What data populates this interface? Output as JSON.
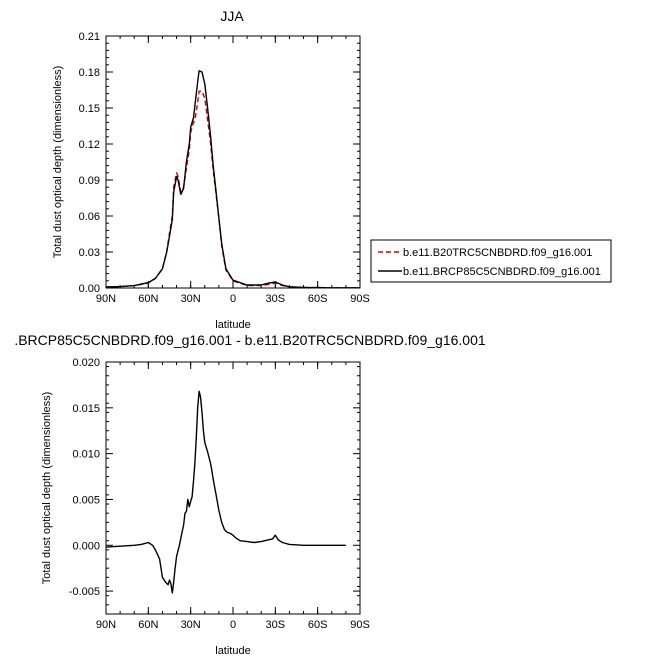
{
  "chart_data": [
    {
      "type": "line",
      "title": "JJA",
      "xlabel": "latitude",
      "ylabel": "Total dust optical depth (dimensionless)",
      "xlim": [
        90,
        -90
      ],
      "ylim": [
        0,
        0.21
      ],
      "xticks": [
        90,
        60,
        30,
        0,
        -30,
        -60,
        -90
      ],
      "xtick_labels": [
        "90N",
        "60N",
        "30N",
        "0",
        "30S",
        "60S",
        "90S"
      ],
      "yticks": [
        0,
        0.03,
        0.06,
        0.09,
        0.12,
        0.15,
        0.18,
        0.21
      ],
      "ytick_labels": [
        "0.00",
        "0.03",
        "0.06",
        "0.09",
        "0.12",
        "0.15",
        "0.18",
        "0.21"
      ],
      "legend_position": "right",
      "series": [
        {
          "name": "b.e11.B20TRC5CNBDRD.f09_g16.001",
          "color": "#cc0000",
          "dash": "dashed",
          "x": [
            90,
            80,
            70,
            60,
            55,
            50,
            47,
            45,
            43,
            42,
            40,
            39,
            37,
            35,
            33,
            31,
            30,
            28,
            27,
            25,
            24,
            22,
            20,
            18,
            16,
            14,
            12,
            10,
            8,
            5,
            0,
            -10,
            -20,
            -25,
            -30,
            -35,
            -40,
            -50,
            -60,
            -70,
            -80,
            -90
          ],
          "values": [
            0.0008,
            0.0012,
            0.002,
            0.004,
            0.008,
            0.016,
            0.03,
            0.046,
            0.06,
            0.084,
            0.096,
            0.093,
            0.08,
            0.084,
            0.1,
            0.115,
            0.13,
            0.138,
            0.14,
            0.155,
            0.164,
            0.164,
            0.158,
            0.14,
            0.122,
            0.098,
            0.078,
            0.058,
            0.035,
            0.015,
            0.006,
            0.002,
            0.002,
            0.003,
            0.004,
            0.002,
            0.001,
            0.0005,
            0.0003,
            0.0002,
            0.0002,
            0.0002
          ]
        },
        {
          "name": "b.e11.BRCP85C5CNBDRD.f09_g16.001",
          "color": "#000000",
          "dash": "solid",
          "x": [
            90,
            80,
            70,
            60,
            55,
            50,
            47,
            45,
            43,
            42,
            40,
            39,
            37,
            35,
            33,
            31,
            30,
            28,
            27,
            25,
            24,
            22,
            20,
            18,
            16,
            14,
            12,
            10,
            8,
            5,
            0,
            -10,
            -20,
            -25,
            -30,
            -35,
            -40,
            -50,
            -60,
            -70,
            -80,
            -90
          ],
          "values": [
            0.0008,
            0.0012,
            0.002,
            0.0045,
            0.008,
            0.016,
            0.03,
            0.043,
            0.057,
            0.08,
            0.093,
            0.09,
            0.078,
            0.083,
            0.105,
            0.12,
            0.134,
            0.142,
            0.152,
            0.172,
            0.181,
            0.18,
            0.17,
            0.15,
            0.128,
            0.102,
            0.08,
            0.058,
            0.037,
            0.016,
            0.0065,
            0.0025,
            0.0025,
            0.004,
            0.005,
            0.0025,
            0.001,
            0.0005,
            0.0003,
            0.0002,
            0.0002,
            0.0002
          ]
        }
      ]
    },
    {
      "type": "line",
      "title": ".BRCP85C5CNBDRD.f09_g16.001 - b.e11.B20TRC5CNBDRD.f09_g16.001",
      "xlabel": "latitude",
      "ylabel": "Total dust optical depth (dimensionless)",
      "xlim": [
        90,
        -90
      ],
      "ylim": [
        -0.0075,
        0.02
      ],
      "xticks": [
        90,
        60,
        30,
        0,
        -30,
        -60,
        -90
      ],
      "xtick_labels": [
        "90N",
        "60N",
        "30N",
        "0",
        "30S",
        "60S",
        "90S"
      ],
      "yticks": [
        -0.005,
        0,
        0.005,
        0.01,
        0.015,
        0.02
      ],
      "ytick_labels": [
        "-0.005",
        "0.000",
        "0.005",
        "0.010",
        "0.015",
        "0.020"
      ],
      "series": [
        {
          "color": "#000000",
          "dash": "solid",
          "x": [
            90,
            80,
            70,
            65,
            60,
            57,
            55,
            52,
            50,
            48,
            46,
            45,
            44,
            43,
            42,
            41,
            40,
            38,
            36,
            35,
            34,
            33,
            32,
            31,
            30,
            29,
            28,
            27,
            26,
            25,
            24,
            23,
            22,
            21,
            20,
            19,
            18,
            17,
            16,
            15,
            14,
            12,
            10,
            8,
            6,
            4,
            2,
            0,
            -2,
            -5,
            -10,
            -15,
            -20,
            -25,
            -28,
            -30,
            -32,
            -35,
            -40,
            -50,
            -60,
            -70,
            -80
          ],
          "values": [
            -0.0002,
            -0.0001,
            0.0,
            0.0001,
            0.0003,
            0.0,
            -0.0005,
            -0.0015,
            -0.0035,
            -0.004,
            -0.0043,
            -0.0038,
            -0.0042,
            -0.0052,
            -0.004,
            -0.0025,
            -0.0012,
            0.0,
            0.0015,
            0.0022,
            0.0035,
            0.0037,
            0.005,
            0.0042,
            0.0048,
            0.0053,
            0.007,
            0.009,
            0.0118,
            0.015,
            0.0168,
            0.0162,
            0.0145,
            0.0125,
            0.0112,
            0.0107,
            0.0102,
            0.0096,
            0.009,
            0.0082,
            0.0072,
            0.0055,
            0.0038,
            0.0025,
            0.0017,
            0.0014,
            0.0013,
            0.0011,
            0.0008,
            0.0005,
            0.0004,
            0.0003,
            0.0004,
            0.0006,
            0.0007,
            0.0011,
            0.0006,
            0.0003,
            0.0001,
            0.0,
            0.0,
            0.0,
            0.0
          ]
        }
      ]
    }
  ]
}
